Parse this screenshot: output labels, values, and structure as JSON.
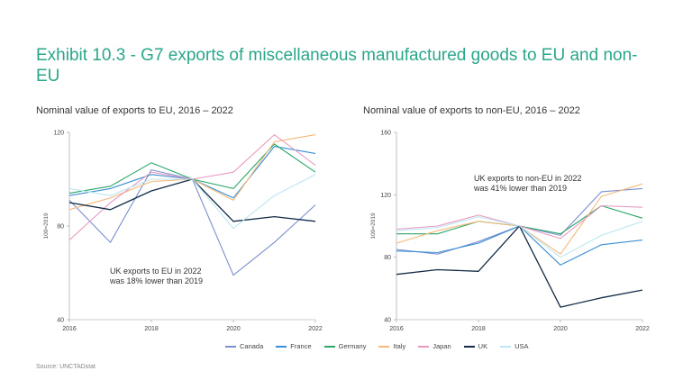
{
  "title": "Exhibit 10.3 - G7 exports of miscellaneous manufactured goods to EU and non-EU",
  "source": "Source: UNCTADstat",
  "colors": {
    "Canada": "#7b8fcf",
    "France": "#3a8fd4",
    "Germany": "#2aa66a",
    "Italy": "#f5b97a",
    "Japan": "#e89ac0",
    "UK": "#142c48",
    "USA": "#bde6f3"
  },
  "chart_data": [
    {
      "type": "line",
      "title": "Nominal value of exports to EU, 2016 – 2022",
      "ylabel": "100=2019",
      "xlabel": "",
      "x": [
        2016,
        2017,
        2018,
        2019,
        2020,
        2021,
        2022
      ],
      "x_tick_labels": [
        "2016",
        "2018",
        "2020",
        "2022"
      ],
      "x_ticks": [
        2016,
        2018,
        2020,
        2022
      ],
      "ylim": [
        40,
        120
      ],
      "y_ticks": [
        40,
        80,
        120
      ],
      "grid": false,
      "annotation": [
        "UK exports to EU in 2022",
        "was 18% lower than 2019"
      ],
      "series": [
        {
          "name": "Canada",
          "values": [
            91,
            73,
            104,
            100,
            59,
            73,
            89
          ]
        },
        {
          "name": "France",
          "values": [
            93,
            96,
            102,
            100,
            92,
            114,
            111
          ]
        },
        {
          "name": "Germany",
          "values": [
            94,
            97,
            107,
            100,
            96,
            115,
            103
          ]
        },
        {
          "name": "Italy",
          "values": [
            87,
            92,
            99,
            100,
            91,
            116,
            119
          ]
        },
        {
          "name": "Japan",
          "values": [
            74,
            90,
            103,
            100,
            103,
            119,
            106
          ]
        },
        {
          "name": "UK",
          "values": [
            90,
            87,
            95,
            100,
            82,
            84,
            82
          ]
        },
        {
          "name": "USA",
          "values": [
            96,
            93,
            100,
            100,
            79,
            93,
            102
          ]
        }
      ]
    },
    {
      "type": "line",
      "title": "Nominal value of exports to non-EU, 2016 – 2022",
      "ylabel": "100=2019",
      "xlabel": "",
      "x": [
        2016,
        2017,
        2018,
        2019,
        2020,
        2021,
        2022
      ],
      "x_tick_labels": [
        "2016",
        "2018",
        "2020",
        "2022"
      ],
      "x_ticks": [
        2016,
        2018,
        2020,
        2022
      ],
      "ylim": [
        40,
        160
      ],
      "y_ticks": [
        40,
        80,
        120,
        160
      ],
      "grid": false,
      "annotation": [
        "UK exports to non-EU in 2022",
        "was 41% lower than 2019"
      ],
      "series": [
        {
          "name": "Canada",
          "values": [
            85,
            82,
            90,
            100,
            94,
            122,
            124
          ]
        },
        {
          "name": "France",
          "values": [
            84,
            83,
            89,
            100,
            75,
            88,
            91
          ]
        },
        {
          "name": "Germany",
          "values": [
            95,
            95,
            103,
            100,
            95,
            113,
            105
          ]
        },
        {
          "name": "Italy",
          "values": [
            89,
            97,
            103,
            100,
            82,
            119,
            127
          ]
        },
        {
          "name": "Japan",
          "values": [
            98,
            100,
            107,
            100,
            92,
            113,
            112
          ]
        },
        {
          "name": "UK",
          "values": [
            69,
            72,
            71,
            100,
            48,
            54,
            59
          ]
        },
        {
          "name": "USA",
          "values": [
            97,
            99,
            106,
            100,
            80,
            94,
            103
          ]
        }
      ]
    }
  ]
}
